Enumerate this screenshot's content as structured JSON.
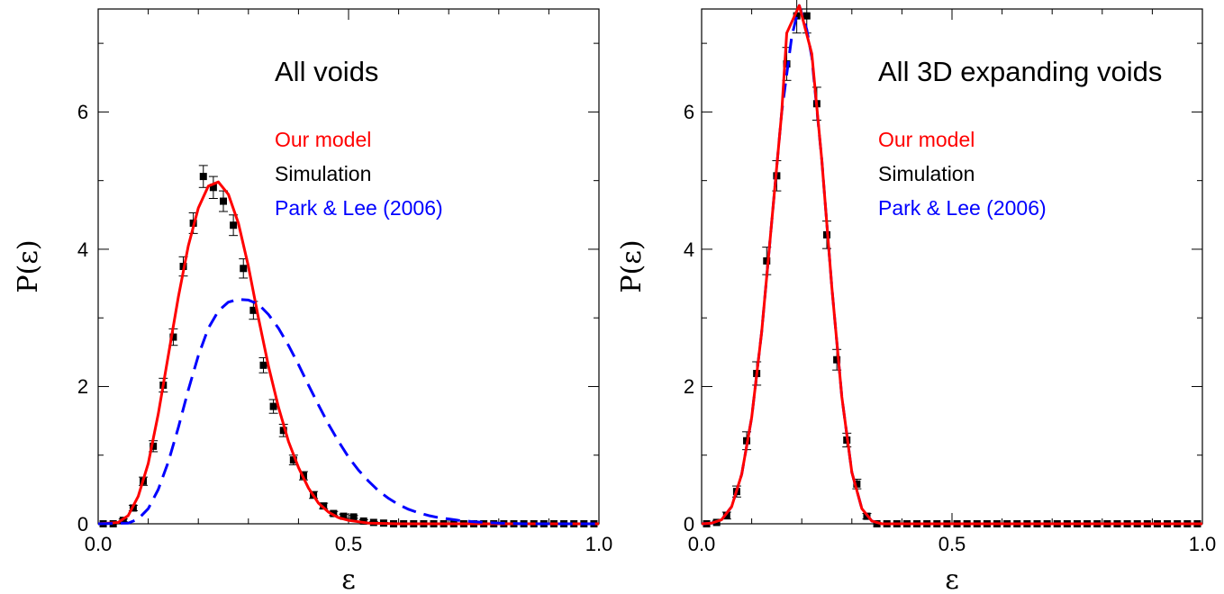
{
  "chart_data": [
    {
      "type": "line",
      "title": "All voids",
      "xlabel": "ε",
      "ylabel": "P(ε)",
      "xlim": [
        0.0,
        1.0
      ],
      "ylim": [
        0,
        7.5
      ],
      "xticks": [
        "0.0",
        "0.5",
        "1.0"
      ],
      "yticks": [
        "0",
        "2",
        "4",
        "6"
      ],
      "legend": [
        {
          "label": "Our model",
          "color": "#ff0000"
        },
        {
          "label": "Simulation",
          "color": "#000000"
        },
        {
          "label": "Park & Lee (2006)",
          "color": "#0000ff"
        }
      ],
      "series": [
        {
          "name": "Simulation",
          "style": "markers-errorbars",
          "color": "#000000",
          "points": [
            [
              0.01,
              0.0,
              0.0
            ],
            [
              0.03,
              0.0,
              0.0
            ],
            [
              0.05,
              0.05,
              0.02
            ],
            [
              0.07,
              0.23,
              0.04
            ],
            [
              0.09,
              0.62,
              0.06
            ],
            [
              0.11,
              1.13,
              0.08
            ],
            [
              0.13,
              2.02,
              0.1
            ],
            [
              0.15,
              2.72,
              0.12
            ],
            [
              0.17,
              3.75,
              0.14
            ],
            [
              0.19,
              4.38,
              0.15
            ],
            [
              0.21,
              5.06,
              0.16
            ],
            [
              0.23,
              4.9,
              0.16
            ],
            [
              0.25,
              4.7,
              0.15
            ],
            [
              0.27,
              4.35,
              0.15
            ],
            [
              0.29,
              3.72,
              0.14
            ],
            [
              0.31,
              3.11,
              0.13
            ],
            [
              0.33,
              2.31,
              0.11
            ],
            [
              0.35,
              1.71,
              0.1
            ],
            [
              0.37,
              1.36,
              0.09
            ],
            [
              0.39,
              0.93,
              0.07
            ],
            [
              0.41,
              0.7,
              0.06
            ],
            [
              0.43,
              0.42,
              0.05
            ],
            [
              0.45,
              0.26,
              0.04
            ],
            [
              0.47,
              0.15,
              0.03
            ],
            [
              0.49,
              0.11,
              0.03
            ],
            [
              0.51,
              0.1,
              0.02
            ],
            [
              0.53,
              0.04,
              0.02
            ],
            [
              0.55,
              0.02,
              0.01
            ],
            [
              0.57,
              0.01,
              0.01
            ],
            [
              0.59,
              0.0,
              0.0
            ],
            [
              0.61,
              0.0,
              0.0
            ],
            [
              0.63,
              0.0,
              0.0
            ],
            [
              0.65,
              0.0,
              0.0
            ],
            [
              0.67,
              0.0,
              0.0
            ],
            [
              0.69,
              0.0,
              0.0
            ],
            [
              0.71,
              0.0,
              0.0
            ],
            [
              0.73,
              0.0,
              0.0
            ],
            [
              0.75,
              0.0,
              0.0
            ],
            [
              0.77,
              0.0,
              0.0
            ],
            [
              0.79,
              0.0,
              0.0
            ],
            [
              0.81,
              0.0,
              0.0
            ],
            [
              0.83,
              0.0,
              0.0
            ],
            [
              0.85,
              0.0,
              0.0
            ],
            [
              0.87,
              0.0,
              0.0
            ],
            [
              0.89,
              0.0,
              0.0
            ],
            [
              0.91,
              0.0,
              0.0
            ],
            [
              0.93,
              0.0,
              0.0
            ],
            [
              0.95,
              0.0,
              0.0
            ],
            [
              0.97,
              0.0,
              0.0
            ],
            [
              0.99,
              0.0,
              0.0
            ]
          ]
        },
        {
          "name": "Our model",
          "style": "solid",
          "color": "#ff0000",
          "points": [
            [
              0.0,
              0.0
            ],
            [
              0.04,
              0.02
            ],
            [
              0.06,
              0.12
            ],
            [
              0.08,
              0.4
            ],
            [
              0.1,
              0.88
            ],
            [
              0.12,
              1.6
            ],
            [
              0.14,
              2.45
            ],
            [
              0.16,
              3.3
            ],
            [
              0.18,
              4.05
            ],
            [
              0.2,
              4.6
            ],
            [
              0.22,
              4.92
            ],
            [
              0.24,
              4.98
            ],
            [
              0.26,
              4.8
            ],
            [
              0.28,
              4.38
            ],
            [
              0.3,
              3.75
            ],
            [
              0.32,
              3.0
            ],
            [
              0.34,
              2.3
            ],
            [
              0.36,
              1.7
            ],
            [
              0.38,
              1.2
            ],
            [
              0.4,
              0.82
            ],
            [
              0.42,
              0.52
            ],
            [
              0.44,
              0.3
            ],
            [
              0.46,
              0.17
            ],
            [
              0.48,
              0.09
            ],
            [
              0.5,
              0.05
            ],
            [
              0.54,
              0.01
            ],
            [
              0.6,
              0.0
            ],
            [
              1.0,
              0.0
            ]
          ]
        },
        {
          "name": "Park & Lee (2006)",
          "style": "dashed",
          "color": "#0000ff",
          "points": [
            [
              0.0,
              0.0
            ],
            [
              0.06,
              0.01
            ],
            [
              0.08,
              0.07
            ],
            [
              0.1,
              0.22
            ],
            [
              0.12,
              0.5
            ],
            [
              0.14,
              0.9
            ],
            [
              0.16,
              1.4
            ],
            [
              0.18,
              1.95
            ],
            [
              0.2,
              2.45
            ],
            [
              0.22,
              2.85
            ],
            [
              0.24,
              3.1
            ],
            [
              0.26,
              3.23
            ],
            [
              0.28,
              3.27
            ],
            [
              0.3,
              3.26
            ],
            [
              0.32,
              3.2
            ],
            [
              0.34,
              3.05
            ],
            [
              0.36,
              2.85
            ],
            [
              0.38,
              2.6
            ],
            [
              0.4,
              2.32
            ],
            [
              0.42,
              2.02
            ],
            [
              0.44,
              1.73
            ],
            [
              0.46,
              1.45
            ],
            [
              0.48,
              1.2
            ],
            [
              0.5,
              0.97
            ],
            [
              0.52,
              0.78
            ],
            [
              0.54,
              0.62
            ],
            [
              0.56,
              0.48
            ],
            [
              0.58,
              0.37
            ],
            [
              0.6,
              0.28
            ],
            [
              0.62,
              0.21
            ],
            [
              0.64,
              0.16
            ],
            [
              0.66,
              0.12
            ],
            [
              0.68,
              0.09
            ],
            [
              0.7,
              0.07
            ],
            [
              0.72,
              0.05
            ],
            [
              0.75,
              0.03
            ],
            [
              0.8,
              0.01
            ],
            [
              0.85,
              0.0
            ],
            [
              1.0,
              0.0
            ]
          ]
        }
      ]
    },
    {
      "type": "line",
      "title": "All 3D expanding voids",
      "xlabel": "ε",
      "ylabel": "P(ε)",
      "xlim": [
        0.0,
        1.0
      ],
      "ylim": [
        0,
        7.5
      ],
      "xticks": [
        "0.0",
        "0.5",
        "1.0"
      ],
      "yticks": [
        "0",
        "2",
        "4",
        "6"
      ],
      "legend": [
        {
          "label": "Our model",
          "color": "#ff0000"
        },
        {
          "label": "Simulation",
          "color": "#000000"
        },
        {
          "label": "Park & Lee (2006)",
          "color": "#0000ff"
        }
      ],
      "series": [
        {
          "name": "Simulation",
          "style": "markers-errorbars",
          "color": "#000000",
          "points": [
            [
              0.01,
              0.0,
              0.0
            ],
            [
              0.03,
              0.02,
              0.02
            ],
            [
              0.05,
              0.12,
              0.05
            ],
            [
              0.07,
              0.47,
              0.08
            ],
            [
              0.09,
              1.21,
              0.13
            ],
            [
              0.11,
              2.19,
              0.17
            ],
            [
              0.13,
              3.83,
              0.2
            ],
            [
              0.15,
              5.07,
              0.22
            ],
            [
              0.17,
              6.7,
              0.24
            ],
            [
              0.19,
              7.4,
              0.25
            ],
            [
              0.21,
              7.4,
              0.25
            ],
            [
              0.23,
              6.12,
              0.24
            ],
            [
              0.25,
              4.21,
              0.2
            ],
            [
              0.27,
              2.39,
              0.15
            ],
            [
              0.29,
              1.22,
              0.1
            ],
            [
              0.31,
              0.58,
              0.07
            ],
            [
              0.33,
              0.11,
              0.04
            ],
            [
              0.35,
              0.0,
              0.0
            ],
            [
              0.37,
              0.0,
              0.0
            ],
            [
              0.39,
              0.0,
              0.0
            ],
            [
              0.41,
              0.0,
              0.0
            ],
            [
              0.43,
              0.0,
              0.0
            ],
            [
              0.45,
              0.0,
              0.0
            ],
            [
              0.47,
              0.0,
              0.0
            ],
            [
              0.49,
              0.0,
              0.0
            ],
            [
              0.51,
              0.0,
              0.0
            ],
            [
              0.53,
              0.0,
              0.0
            ],
            [
              0.55,
              0.0,
              0.0
            ],
            [
              0.57,
              0.0,
              0.0
            ],
            [
              0.59,
              0.0,
              0.0
            ],
            [
              0.61,
              0.0,
              0.0
            ],
            [
              0.63,
              0.0,
              0.0
            ],
            [
              0.65,
              0.0,
              0.0
            ],
            [
              0.67,
              0.0,
              0.0
            ],
            [
              0.69,
              0.0,
              0.0
            ],
            [
              0.71,
              0.0,
              0.0
            ],
            [
              0.73,
              0.0,
              0.0
            ],
            [
              0.75,
              0.0,
              0.0
            ],
            [
              0.77,
              0.0,
              0.0
            ],
            [
              0.79,
              0.0,
              0.0
            ],
            [
              0.81,
              0.0,
              0.0
            ],
            [
              0.83,
              0.0,
              0.0
            ],
            [
              0.85,
              0.0,
              0.0
            ],
            [
              0.87,
              0.0,
              0.0
            ],
            [
              0.89,
              0.0,
              0.0
            ],
            [
              0.91,
              0.0,
              0.0
            ],
            [
              0.93,
              0.0,
              0.0
            ],
            [
              0.95,
              0.0,
              0.0
            ],
            [
              0.97,
              0.0,
              0.0
            ],
            [
              0.99,
              0.0,
              0.0
            ]
          ]
        },
        {
          "name": "Park & Lee (2006)",
          "style": "dashed",
          "color": "#0000ff",
          "points": [
            [
              0.0,
              0.0
            ],
            [
              0.02,
              0.01
            ],
            [
              0.04,
              0.06
            ],
            [
              0.06,
              0.25
            ],
            [
              0.08,
              0.72
            ],
            [
              0.1,
              1.55
            ],
            [
              0.12,
              2.8
            ],
            [
              0.14,
              4.4
            ],
            [
              0.16,
              6.0
            ],
            [
              0.18,
              7.1
            ],
            [
              0.195,
              7.55
            ],
            [
              0.21,
              7.2
            ],
            [
              0.22,
              6.8
            ],
            [
              0.24,
              5.3
            ],
            [
              0.26,
              3.45
            ],
            [
              0.28,
              1.85
            ],
            [
              0.3,
              0.75
            ],
            [
              0.32,
              0.22
            ],
            [
              0.34,
              0.04
            ],
            [
              0.36,
              0.0
            ],
            [
              1.0,
              0.0
            ]
          ]
        },
        {
          "name": "Our model",
          "style": "solid",
          "color": "#ff0000",
          "points": [
            [
              0.0,
              0.0
            ],
            [
              0.02,
              0.01
            ],
            [
              0.04,
              0.06
            ],
            [
              0.06,
              0.25
            ],
            [
              0.08,
              0.72
            ],
            [
              0.1,
              1.55
            ],
            [
              0.12,
              2.8
            ],
            [
              0.14,
              4.4
            ],
            [
              0.16,
              6.0
            ],
            [
              0.17,
              7.15
            ],
            [
              0.195,
              7.55
            ],
            [
              0.22,
              6.85
            ],
            [
              0.24,
              5.3
            ],
            [
              0.26,
              3.45
            ],
            [
              0.28,
              1.85
            ],
            [
              0.3,
              0.75
            ],
            [
              0.32,
              0.22
            ],
            [
              0.34,
              0.04
            ],
            [
              0.36,
              0.0
            ],
            [
              1.0,
              0.0
            ]
          ]
        }
      ]
    }
  ]
}
